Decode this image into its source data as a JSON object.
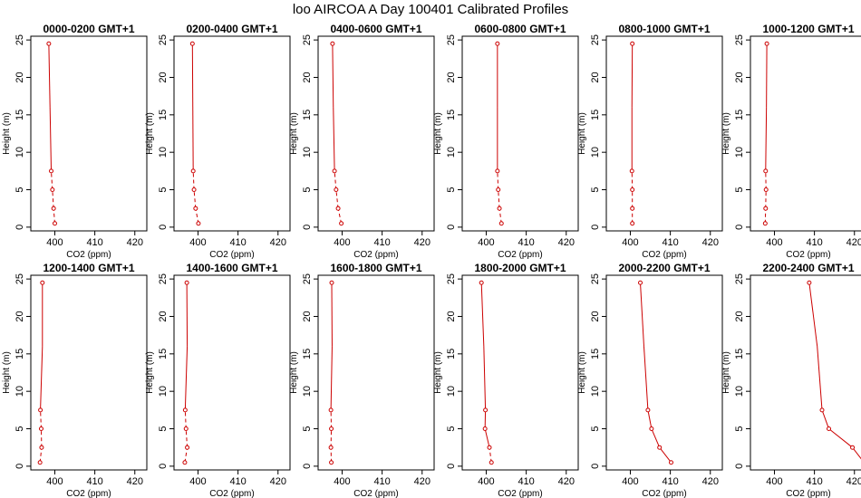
{
  "title": "loo AIRCOA A  Day 100401  Calibrated Profiles",
  "chart_data": {
    "type": "line",
    "xlabel": "CO2 (ppm)",
    "ylabel": "Height (m)",
    "xlim": [
      394,
      423
    ],
    "ylim": [
      -0.5,
      25.5
    ],
    "xticks": [
      400,
      410,
      420
    ],
    "yticks": [
      0,
      5,
      10,
      15,
      20,
      25
    ],
    "line_color": "#cc0000",
    "panels": [
      {
        "title": "0000-0200 GMT+1",
        "points": [
          [
            400.0,
            0.5
          ],
          [
            399.7,
            2.5
          ],
          [
            399.4,
            5.0
          ],
          [
            399.1,
            7.5
          ],
          [
            398.8,
            16.0
          ],
          [
            398.5,
            24.5
          ]
        ],
        "dash_below": 7.5
      },
      {
        "title": "0200-0400 GMT+1",
        "points": [
          [
            400.1,
            0.5
          ],
          [
            399.4,
            2.5
          ],
          [
            399.0,
            5.0
          ],
          [
            398.8,
            7.5
          ],
          [
            398.7,
            16.0
          ],
          [
            398.6,
            24.5
          ]
        ],
        "dash_below": 7.5
      },
      {
        "title": "0400-0600 GMT+1",
        "points": [
          [
            399.8,
            0.5
          ],
          [
            399.0,
            2.5
          ],
          [
            398.5,
            5.0
          ],
          [
            398.1,
            7.5
          ],
          [
            397.8,
            16.0
          ],
          [
            397.6,
            24.5
          ]
        ],
        "dash_below": 7.5
      },
      {
        "title": "0600-0800 GMT+1",
        "points": [
          [
            403.8,
            0.5
          ],
          [
            403.3,
            2.5
          ],
          [
            403.0,
            5.0
          ],
          [
            402.8,
            7.5
          ],
          [
            402.8,
            16.0
          ],
          [
            402.8,
            24.5
          ]
        ],
        "dash_below": 7.5
      },
      {
        "title": "0800-1000 GMT+1",
        "points": [
          [
            400.5,
            0.5
          ],
          [
            400.5,
            2.5
          ],
          [
            400.5,
            5.0
          ],
          [
            400.4,
            7.5
          ],
          [
            400.4,
            16.0
          ],
          [
            400.5,
            24.5
          ]
        ],
        "dash_below": 7.5
      },
      {
        "title": "1000-1200 GMT+1",
        "points": [
          [
            397.7,
            0.5
          ],
          [
            397.8,
            2.5
          ],
          [
            397.9,
            5.0
          ],
          [
            397.8,
            7.5
          ],
          [
            398.0,
            16.0
          ],
          [
            398.1,
            24.5
          ]
        ],
        "dash_below": 7.5
      },
      {
        "title": "1200-1400 GMT+1",
        "points": [
          [
            396.3,
            0.5
          ],
          [
            396.7,
            2.5
          ],
          [
            396.6,
            5.0
          ],
          [
            396.4,
            7.5
          ],
          [
            396.9,
            16.0
          ],
          [
            396.9,
            24.5
          ]
        ],
        "dash_below": 7.5
      },
      {
        "title": "1400-1600 GMT+1",
        "points": [
          [
            396.7,
            0.5
          ],
          [
            397.3,
            2.5
          ],
          [
            397.0,
            5.0
          ],
          [
            396.8,
            7.5
          ],
          [
            397.3,
            16.0
          ],
          [
            397.2,
            24.5
          ]
        ],
        "dash_below": 7.5
      },
      {
        "title": "1600-1800 GMT+1",
        "points": [
          [
            397.3,
            0.5
          ],
          [
            397.2,
            2.5
          ],
          [
            397.3,
            5.0
          ],
          [
            397.2,
            7.5
          ],
          [
            397.5,
            16.0
          ],
          [
            397.4,
            24.5
          ]
        ],
        "dash_below": 7.5
      },
      {
        "title": "1800-2000 GMT+1",
        "points": [
          [
            401.3,
            0.5
          ],
          [
            400.8,
            2.5
          ],
          [
            399.7,
            5.0
          ],
          [
            399.8,
            7.5
          ],
          [
            399.4,
            16.0
          ],
          [
            398.8,
            24.5
          ]
        ],
        "dash_below": 2.5
      },
      {
        "title": "2000-2200 GMT+1",
        "points": [
          [
            410.2,
            0.5
          ],
          [
            407.3,
            2.5
          ],
          [
            405.3,
            5.0
          ],
          [
            404.4,
            7.5
          ],
          [
            403.4,
            16.0
          ],
          [
            402.5,
            24.5
          ]
        ],
        "dash_below": 0
      },
      {
        "title": "2200-2400 GMT+1",
        "points": [
          [
            422.4,
            0.5
          ],
          [
            419.5,
            2.5
          ],
          [
            413.6,
            5.0
          ],
          [
            411.9,
            7.5
          ],
          [
            410.7,
            16.0
          ],
          [
            408.7,
            24.5
          ]
        ],
        "dash_below": 0
      }
    ]
  }
}
